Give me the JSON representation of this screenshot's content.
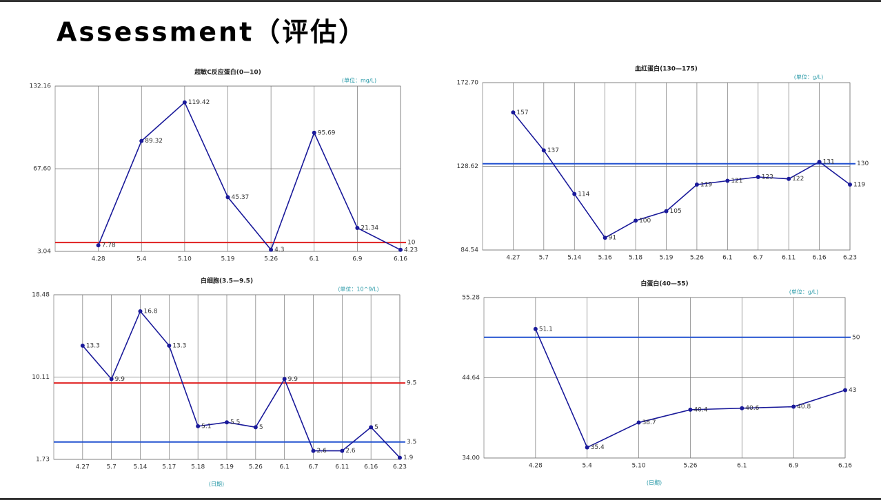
{
  "title": "Assessment（评估）",
  "chart_data": [
    {
      "type": "line",
      "title": "超敏C反应蛋白(0—10)",
      "unit": "(单位：mg/L)",
      "categories": [
        "4.28",
        "5.4",
        "5.10",
        "5.19",
        "5.26",
        "6.1",
        "6.9",
        "6.16"
      ],
      "series": [
        {
          "name": "超敏C反应蛋白",
          "color": "#1a1a9a",
          "values": [
            7.78,
            89.32,
            119.42,
            45.37,
            4.3,
            95.69,
            21.34,
            4.23
          ]
        }
      ],
      "ylim": [
        3.04,
        132.16
      ],
      "yticks": [
        {
          "value": 3.04,
          "label": "3.04"
        },
        {
          "value": 67.6,
          "label": "67.60"
        },
        {
          "value": 132.16,
          "label": "132.16"
        }
      ],
      "reference_lines": [
        {
          "value": 10,
          "color": "#e02020"
        }
      ],
      "grid": true
    },
    {
      "type": "line",
      "title": "血红蛋白(130—175)",
      "unit": "(单位：g/L)",
      "categories": [
        "4.27",
        "5.7",
        "5.14",
        "5.16",
        "5.18",
        "5.19",
        "5.26",
        "6.1",
        "6.7",
        "6.11",
        "6.16",
        "6.23"
      ],
      "series": [
        {
          "name": "血红蛋白",
          "color": "#1a1a9a",
          "values": [
            157,
            137,
            114,
            91,
            100,
            105,
            119,
            121,
            123,
            122,
            131,
            119
          ]
        }
      ],
      "ylim": [
        84.54,
        172.7
      ],
      "yticks": [
        {
          "value": 84.54,
          "label": "84.54"
        },
        128.62,
        {
          "value": 172.7,
          "label": "172.70"
        }
      ],
      "reference_lines": [
        {
          "value": 130,
          "color": "#2050d0"
        }
      ],
      "grid": true
    },
    {
      "type": "line",
      "title": "白细胞(3.5—9.5)",
      "unit": "(单位：10^9/L)",
      "footer": "(日期)",
      "categories": [
        "4.27",
        "5.7",
        "5.14",
        "5.17",
        "5.18",
        "5.19",
        "5.26",
        "6.1",
        "6.7",
        "6.11",
        "6.16",
        "6.23"
      ],
      "series": [
        {
          "name": "白细胞",
          "color": "#1a1a9a",
          "values": [
            13.3,
            9.9,
            16.8,
            13.3,
            5.1,
            5.5,
            5.0,
            9.9,
            2.6,
            2.6,
            5.0,
            1.9
          ]
        }
      ],
      "ylim": [
        1.73,
        18.48
      ],
      "yticks": [
        1.73,
        {
          "value": 10.105,
          "label": "10.11"
        },
        18.48
      ],
      "reference_lines": [
        {
          "value": 9.5,
          "color": "#e02020"
        },
        {
          "value": 3.5,
          "color": "#2050d0"
        }
      ],
      "grid": true
    },
    {
      "type": "line",
      "title": "白蛋白(40—55)",
      "unit": "(单位：g/L)",
      "footer": "(日期)",
      "categories": [
        "4.28",
        "5.4",
        "5.10",
        "5.26",
        "6.1",
        "6.9",
        "6.16"
      ],
      "series": [
        {
          "name": "白蛋白",
          "color": "#1a1a9a",
          "values": [
            51.1,
            35.4,
            38.7,
            40.4,
            40.6,
            40.8,
            43.0
          ]
        }
      ],
      "ylim": [
        34,
        55.28
      ],
      "yticks": [
        {
          "value": 34,
          "label": "34.00"
        },
        44.64,
        55.28
      ],
      "reference_lines": [
        {
          "value": 50,
          "color": "#2050d0"
        }
      ],
      "grid": true
    }
  ]
}
